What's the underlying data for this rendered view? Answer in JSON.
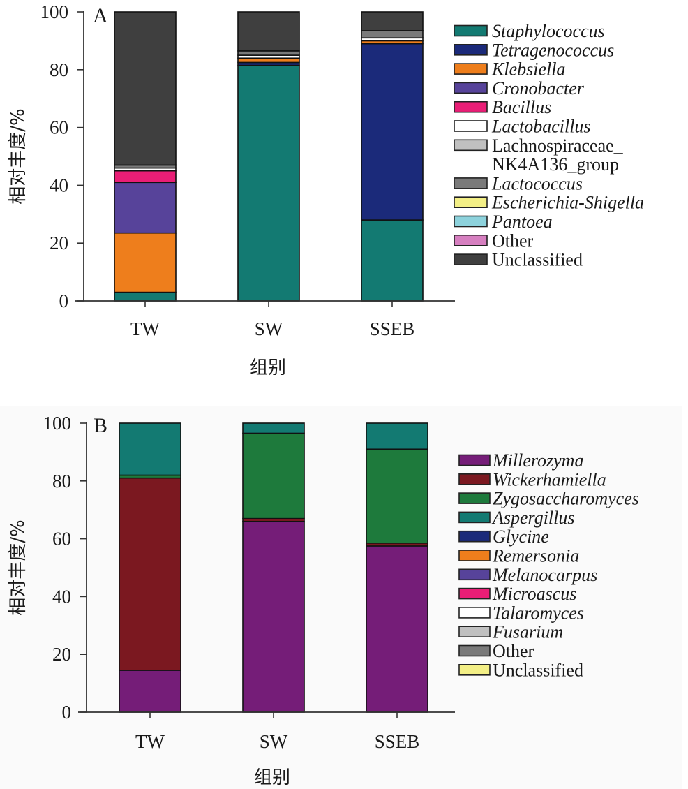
{
  "chart_data": [
    {
      "type": "bar",
      "stacked": true,
      "panel_label": "A",
      "title": "",
      "xlabel": "组别",
      "ylabel": "相对丰度/%",
      "ylim": [
        0,
        100
      ],
      "yticks": [
        0,
        20,
        40,
        60,
        80,
        100
      ],
      "categories": [
        "TW",
        "SW",
        "SSEB"
      ],
      "legend_position": "right",
      "series": [
        {
          "name": "Staphylococcus",
          "italic": true,
          "color": "#137a72",
          "values": [
            3,
            81.5,
            28
          ]
        },
        {
          "name": "Tetragenococcus",
          "italic": true,
          "color": "#1b2a7a",
          "values": [
            0,
            1,
            61
          ]
        },
        {
          "name": "Klebsiella",
          "italic": true,
          "color": "#ee7e1c",
          "values": [
            20.5,
            1.5,
            1
          ]
        },
        {
          "name": "Cronobacter",
          "italic": true,
          "color": "#57439a",
          "values": [
            17.5,
            0,
            0
          ]
        },
        {
          "name": "Bacillus",
          "italic": true,
          "color": "#e91e76",
          "values": [
            4,
            0,
            0
          ]
        },
        {
          "name": "Lactobacillus",
          "italic": true,
          "color": "#ffffff",
          "values": [
            1,
            1,
            1
          ]
        },
        {
          "name": "Lachnospiraceae_ NK4A136_group",
          "italic": false,
          "color": "#c0c0c0",
          "values": [
            0,
            0,
            0
          ]
        },
        {
          "name": "Lactococcus",
          "italic": true,
          "color": "#7a7a7a",
          "values": [
            1,
            1.5,
            2.5
          ]
        },
        {
          "name": "Escherichia-Shigella",
          "italic": true,
          "color": "#f3ef86",
          "values": [
            0,
            0,
            0
          ]
        },
        {
          "name": "Pantoea",
          "italic": true,
          "color": "#8dd2dc",
          "values": [
            0,
            0,
            0
          ]
        },
        {
          "name": "Other",
          "italic": false,
          "color": "#d67fc0",
          "values": [
            0,
            0,
            0
          ]
        },
        {
          "name": "Unclassified",
          "italic": false,
          "color": "#3f3f3f",
          "values": [
            53,
            13.5,
            6.5
          ]
        }
      ]
    },
    {
      "type": "bar",
      "stacked": true,
      "panel_label": "B",
      "title": "",
      "xlabel": "组别",
      "ylabel": "相对丰度/%",
      "ylim": [
        0,
        100
      ],
      "yticks": [
        0,
        20,
        40,
        60,
        80,
        100
      ],
      "categories": [
        "TW",
        "SW",
        "SSEB"
      ],
      "legend_position": "right",
      "series": [
        {
          "name": "Millerozyma",
          "italic": true,
          "color": "#751d78",
          "values": [
            14.5,
            66,
            57.5
          ]
        },
        {
          "name": "Wickerhamiella",
          "italic": true,
          "color": "#7b1820",
          "values": [
            66.5,
            1,
            1
          ]
        },
        {
          "name": "Zygosaccharomyces",
          "italic": true,
          "color": "#1e7a3c",
          "values": [
            1,
            29.5,
            32.5
          ]
        },
        {
          "name": "Aspergillus",
          "italic": true,
          "color": "#137a72",
          "values": [
            18,
            3.5,
            9
          ]
        },
        {
          "name": "Glycine",
          "italic": true,
          "color": "#1b2a7a",
          "values": [
            0,
            0,
            0
          ]
        },
        {
          "name": "Remersonia",
          "italic": true,
          "color": "#ee7e1c",
          "values": [
            0,
            0,
            0
          ]
        },
        {
          "name": "Melanocarpus",
          "italic": true,
          "color": "#57439a",
          "values": [
            0,
            0,
            0
          ]
        },
        {
          "name": "Microascus",
          "italic": true,
          "color": "#e91e76",
          "values": [
            0,
            0,
            0
          ]
        },
        {
          "name": "Talaromyces",
          "italic": true,
          "color": "#ffffff",
          "values": [
            0,
            0,
            0
          ]
        },
        {
          "name": "Fusarium",
          "italic": true,
          "color": "#c0c0c0",
          "values": [
            0,
            0,
            0
          ]
        },
        {
          "name": "Other",
          "italic": false,
          "color": "#7a7a7a",
          "values": [
            0,
            0,
            0
          ]
        },
        {
          "name": "Unclassified",
          "italic": false,
          "color": "#f3ef86",
          "values": [
            0,
            0,
            0
          ]
        }
      ]
    }
  ]
}
